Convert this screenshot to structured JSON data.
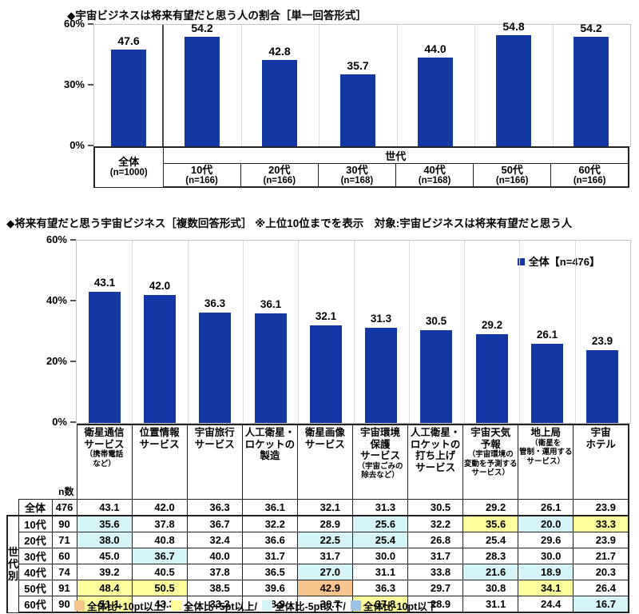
{
  "palette": {
    "bar": "#1437a6",
    "orange": "#f8c48e",
    "yellow": "#ffff9e",
    "cyan": "#d4f4f7",
    "blue": "#9cc3e8"
  },
  "chart1": {
    "title": "◆宇宙ビジネスは将来有望だと思う人の割合［単一回答形式］",
    "chart_data": {
      "type": "bar",
      "categories": [
        "全体",
        "10代",
        "20代",
        "30代",
        "40代",
        "50代",
        "60代"
      ],
      "values": [
        47.6,
        54.2,
        42.8,
        35.7,
        44.0,
        54.8,
        54.2
      ],
      "value_labels": [
        "47.6",
        "54.2",
        "42.8",
        "35.7",
        "44.0",
        "54.8",
        "54.2"
      ],
      "ylim": [
        0,
        60
      ],
      "yticks": [
        "60%",
        "30%",
        "0%"
      ],
      "grid": false,
      "legend_position": "none"
    },
    "axis_table": {
      "group_header": "世代",
      "first_col": {
        "label": "全体",
        "n": "(n=1000)"
      },
      "columns": [
        {
          "label": "10代",
          "n": "(n=166)"
        },
        {
          "label": "20代",
          "n": "(n=166)"
        },
        {
          "label": "30代",
          "n": "(n=168)"
        },
        {
          "label": "40代",
          "n": "(n=168)"
        },
        {
          "label": "50代",
          "n": "(n=166)"
        },
        {
          "label": "60代",
          "n": "(n=166)"
        }
      ]
    }
  },
  "chart2": {
    "title": "◆将来有望だと思う宇宙ビジネス［複数回答形式］ ※上位10位までを表示　対象:宇宙ビジネスは将来有望だと思う人",
    "legend": "全体【n=476】",
    "chart_data": {
      "type": "bar",
      "categories": [
        "衛星通信サービス（携帯電話など）",
        "位置情報サービス",
        "宇宙旅行サービス",
        "人工衛星・ロケットの製造",
        "衛星画像サービス",
        "宇宙環境保護サービス（宇宙ごみの除去など）",
        "人工衛星・ロケットの打ち上げサービス",
        "宇宙天気予報（宇宙環境の変動を予測するサービス）",
        "地上局（衛星を管制・運用するサービス）",
        "宇宙ホテル"
      ],
      "values": [
        43.1,
        42.0,
        36.3,
        36.1,
        32.1,
        31.3,
        30.5,
        29.2,
        26.1,
        23.9
      ],
      "value_labels": [
        "43.1",
        "42.0",
        "36.3",
        "36.1",
        "32.1",
        "31.3",
        "30.5",
        "29.2",
        "26.1",
        "23.9"
      ],
      "ylim": [
        0,
        60
      ],
      "yticks": [
        "60%",
        "40%",
        "20%",
        "0%"
      ],
      "grid": false,
      "legend_position": "top-right"
    },
    "category_cells": [
      {
        "lines": [
          "衛星通信",
          "サービス"
        ],
        "note": [
          "（携帯電話",
          "など）"
        ]
      },
      {
        "lines": [
          "位置情報",
          "サービス"
        ],
        "note": []
      },
      {
        "lines": [
          "宇宙旅行",
          "サービス"
        ],
        "note": []
      },
      {
        "lines": [
          "人工衛星・",
          "ロケットの",
          "製造"
        ],
        "note": []
      },
      {
        "lines": [
          "衛星画像",
          "サービス"
        ],
        "note": []
      },
      {
        "lines": [
          "宇宙環境",
          "保護",
          "サービス"
        ],
        "note": [
          "（宇宙ごみの",
          "除去など）"
        ]
      },
      {
        "lines": [
          "人工衛星・",
          "ロケットの",
          "打ち上げ",
          "サービス"
        ],
        "note": []
      },
      {
        "lines": [
          "宇宙天気",
          "予報"
        ],
        "note": [
          "（宇宙環境の",
          "変動を予測する",
          "サービス）"
        ]
      },
      {
        "lines": [
          "地上局"
        ],
        "note": [
          "（衛星を",
          "管制・運用する",
          "サービス）"
        ]
      },
      {
        "lines": [
          "宇宙",
          "ホテル"
        ],
        "note": []
      }
    ]
  },
  "table": {
    "n_header": "n数",
    "group_label": "世代別",
    "rows": [
      {
        "label": "全体",
        "n": "476",
        "values": [
          "43.1",
          "42.0",
          "36.3",
          "36.1",
          "32.1",
          "31.3",
          "30.5",
          "29.2",
          "26.1",
          "23.9"
        ],
        "colors": [
          "",
          "",
          "",
          "",
          "",
          "",
          "",
          "",
          "",
          ""
        ]
      },
      {
        "label": "10代",
        "n": "90",
        "values": [
          "35.6",
          "37.8",
          "36.7",
          "32.2",
          "28.9",
          "25.6",
          "32.2",
          "35.6",
          "20.0",
          "33.3"
        ],
        "colors": [
          "cyan",
          "",
          "",
          "",
          "",
          "cyan",
          "",
          "yellow",
          "cyan",
          "yellow"
        ]
      },
      {
        "label": "20代",
        "n": "71",
        "values": [
          "38.0",
          "40.8",
          "32.4",
          "36.6",
          "22.5",
          "25.4",
          "26.8",
          "25.4",
          "29.6",
          "23.9"
        ],
        "colors": [
          "cyan",
          "",
          "",
          "",
          "cyan",
          "cyan",
          "",
          "",
          "",
          ""
        ]
      },
      {
        "label": "30代",
        "n": "60",
        "values": [
          "45.0",
          "36.7",
          "40.0",
          "31.7",
          "31.7",
          "30.0",
          "31.7",
          "28.3",
          "30.0",
          "21.7"
        ],
        "colors": [
          "",
          "cyan",
          "",
          "",
          "",
          "",
          "",
          "",
          "",
          ""
        ]
      },
      {
        "label": "40代",
        "n": "74",
        "values": [
          "39.2",
          "40.5",
          "37.8",
          "36.5",
          "27.0",
          "31.1",
          "33.8",
          "21.6",
          "18.9",
          "20.3"
        ],
        "colors": [
          "",
          "",
          "",
          "",
          "cyan",
          "",
          "",
          "cyan",
          "cyan",
          ""
        ]
      },
      {
        "label": "50代",
        "n": "91",
        "values": [
          "48.4",
          "50.5",
          "38.5",
          "39.6",
          "42.9",
          "36.3",
          "29.7",
          "30.8",
          "34.1",
          "26.4"
        ],
        "colors": [
          "yellow",
          "yellow",
          "",
          "",
          "orange",
          "",
          "",
          "",
          "yellow",
          ""
        ]
      },
      {
        "label": "60代",
        "n": "90",
        "values": [
          "51.1",
          "43.3",
          "33.3",
          "38.9",
          "36.7",
          "37.8",
          "28.9",
          "31.1",
          "24.4",
          "16.7"
        ],
        "colors": [
          "yellow",
          "",
          "",
          "",
          "",
          "yellow",
          "",
          "",
          "",
          "cyan"
        ]
      }
    ]
  },
  "bottom_legend": {
    "items": [
      {
        "color": "orange",
        "label": "全体比+10pt以上/"
      },
      {
        "color": "yellow",
        "label": "全体比+5pt以上/"
      },
      {
        "color": "cyan",
        "label": "全体比-5pt以下/"
      },
      {
        "color": "blue",
        "label": "全体比-10pt以下"
      }
    ]
  }
}
